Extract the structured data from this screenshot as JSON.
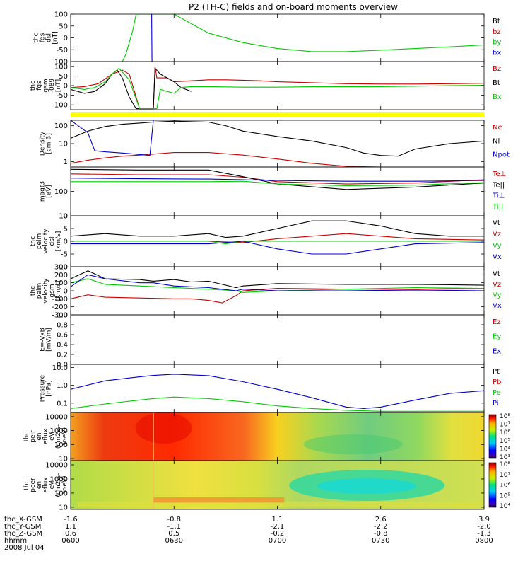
{
  "title": "P2 (TH-C) fields and on-board moments overview",
  "chart_data": {
    "type": "line",
    "time": {
      "start": "0600",
      "end": "0800",
      "date": "2008 Jul 04"
    },
    "panels": [
      {
        "id": "fgs_dsl",
        "ylabel": [
          "thc",
          "fgs",
          "dsl",
          "[nT]"
        ],
        "ylim": [
          -100,
          100
        ],
        "yticks": [
          -100,
          -50,
          0,
          50,
          100
        ],
        "series": [
          {
            "name": "Bt",
            "color": "#000000",
            "t": [],
            "v": []
          },
          {
            "name": "bz",
            "color": "#cc0000",
            "t": [],
            "v": []
          },
          {
            "name": "by",
            "color": "#00cc00",
            "t": [
              0,
              8,
              12,
              15,
              16,
              17,
              18,
              19,
              22,
              24,
              27,
              30,
              35,
              40,
              50,
              60,
              70,
              80,
              90,
              100,
              110,
              120
            ],
            "v": [
              -100,
              -100,
              -100,
              -100,
              -70,
              -20,
              30,
              100,
              100,
              100,
              100,
              100,
              60,
              20,
              -20,
              -45,
              -58,
              -58,
              -52,
              -45,
              -38,
              -30
            ]
          },
          {
            "name": "bx",
            "color": "#0000cc",
            "t": [
              23.5,
              23.6,
              23.7,
              24.0
            ],
            "v": [
              100,
              -100,
              -100,
              -100
            ]
          }
        ]
      },
      {
        "id": "fgs_gsm",
        "ylabel": [
          "thc",
          "fgs",
          "gsm",
          "-089",
          "[nT]"
        ],
        "ylim": [
          -125,
          125
        ],
        "yticks": [
          -100,
          -50,
          0,
          50,
          100
        ],
        "series": [
          {
            "name": "Bz",
            "color": "#cc0000",
            "t": [
              0,
              4,
              8,
              12,
              15,
              17,
              20,
              21,
              24,
              24.5,
              25,
              28,
              30,
              35,
              40,
              45,
              50,
              55,
              60,
              70,
              80,
              90,
              100,
              110,
              120
            ],
            "v": [
              -10,
              -5,
              10,
              60,
              80,
              60,
              -120,
              -120,
              -120,
              100,
              40,
              40,
              20,
              25,
              30,
              30,
              28,
              25,
              20,
              15,
              10,
              8,
              8,
              10,
              12
            ]
          },
          {
            "name": "Bt",
            "color": "#000000",
            "t": [
              0,
              4,
              7,
              10,
              12,
              13.5,
              15,
              17,
              19,
              24,
              24.5,
              26,
              28,
              30,
              32,
              35
            ],
            "v": [
              -20,
              -40,
              -30,
              10,
              60,
              80,
              40,
              -60,
              -120,
              -120,
              90,
              60,
              40,
              20,
              -10,
              -30
            ]
          },
          {
            "name": "Bx",
            "color": "#00cc00",
            "t": [
              0,
              4,
              7,
              10,
              12,
              14,
              17,
              20,
              25,
              26,
              28,
              30,
              32,
              35,
              40,
              50,
              60,
              70,
              80,
              90,
              100,
              110,
              120
            ],
            "v": [
              -10,
              -20,
              -10,
              20,
              60,
              90,
              30,
              -120,
              -120,
              -20,
              -30,
              -40,
              -10,
              -5,
              -5,
              -8,
              -8,
              -6,
              -6,
              -5,
              -3,
              0,
              2
            ]
          }
        ]
      },
      {
        "id": "density",
        "ylabel": [
          "Density",
          "[cm-3]"
        ],
        "scale": "log",
        "ylim": [
          0.5,
          200
        ],
        "yticks": [
          1,
          10,
          100
        ],
        "series": [
          {
            "name": "Ne",
            "color": "#cc0000",
            "t": [
              0,
              5,
              10,
              15,
              20,
              24,
              30,
              40,
              50,
              60,
              70,
              80,
              90,
              100,
              110,
              120
            ],
            "v": [
              0.8,
              1.2,
              1.6,
              2.0,
              2.3,
              2.6,
              3.2,
              3.2,
              2.3,
              1.4,
              0.8,
              0.55,
              0.5,
              0.5,
              0.5,
              0.5
            ]
          },
          {
            "name": "Ni",
            "color": "#000000",
            "t": [
              0,
              5,
              10,
              15,
              20,
              24,
              30,
              40,
              45,
              50,
              60,
              70,
              80,
              85,
              90,
              95,
              100,
              110,
              120
            ],
            "v": [
              20,
              50,
              90,
              120,
              140,
              160,
              180,
              160,
              100,
              50,
              25,
              14,
              6,
              3,
              2.2,
              2.0,
              5,
              10,
              14
            ]
          },
          {
            "name": "Npot",
            "color": "#0000cc",
            "t": [
              0,
              5,
              7,
              10,
              15,
              20,
              23,
              24
            ],
            "v": [
              200,
              40,
              4,
              3.5,
              3.0,
              2.5,
              2.2,
              200
            ]
          }
        ]
      },
      {
        "id": "magt3",
        "ylabel": [
          "magt3",
          "[eV]"
        ],
        "scale": "log",
        "ylim": [
          10,
          1000
        ],
        "yticks": [
          10,
          100
        ],
        "series": [
          {
            "name": "Te⊥",
            "color": "#cc0000",
            "t": [
              0,
              20,
              40,
              50,
              60,
              80,
              100,
              120
            ],
            "v": [
              520,
              480,
              480,
              380,
              250,
              200,
              220,
              300
            ]
          },
          {
            "name": "Te||",
            "color": "#000000",
            "t": [
              0,
              20,
              40,
              50,
              60,
              80,
              100,
              120
            ],
            "v": [
              800,
              750,
              750,
              400,
              200,
              120,
              150,
              220
            ]
          },
          {
            "name": "Ti⊥",
            "color": "#0000cc",
            "t": [
              0,
              20,
              40,
              50,
              60,
              80,
              100,
              120
            ],
            "v": [
              350,
              330,
              320,
              300,
              280,
              260,
              260,
              280
            ]
          },
          {
            "name": "Ti||",
            "color": "#00cc00",
            "t": [
              0,
              20,
              40,
              50,
              60,
              80,
              100,
              120
            ],
            "v": [
              250,
              250,
              250,
              260,
              200,
              170,
              180,
              230
            ]
          }
        ]
      },
      {
        "id": "peim_dsl",
        "ylabel": [
          "thc",
          "peim",
          "velocity",
          "dsl",
          "[km/s]"
        ],
        "ylim": [
          -10,
          10
        ],
        "yticks": [
          -10,
          -5,
          0,
          5,
          10
        ],
        "series": [
          {
            "name": "Vt",
            "color": "#000000",
            "t": [
              0,
              10,
              20,
              30,
              40,
              45,
              50,
              60,
              70,
              80,
              90,
              100,
              110,
              120
            ],
            "v": [
              2,
              3,
              2,
              2,
              3,
              1.5,
              2,
              5,
              8,
              8,
              6,
              3,
              2,
              2
            ]
          },
          {
            "name": "Vz",
            "color": "#cc0000",
            "t": [
              0,
              20,
              40,
              50,
              60,
              70,
              80,
              90,
              100,
              120
            ],
            "v": [
              0,
              0,
              0,
              -0.5,
              1,
              2,
              3,
              2,
              1,
              0.5
            ]
          },
          {
            "name": "Vy",
            "color": "#00cc00",
            "t": [
              0,
              20,
              40,
              45,
              50,
              60,
              70,
              80,
              90,
              100,
              120
            ],
            "v": [
              0,
              0,
              0,
              -1,
              0,
              0,
              0,
              0,
              0,
              0,
              0
            ]
          },
          {
            "name": "Vx",
            "color": "#0000cc",
            "t": [
              0,
              20,
              40,
              50,
              60,
              70,
              80,
              90,
              100,
              120
            ],
            "v": [
              -1,
              -1,
              -1,
              0,
              -3,
              -5,
              -5,
              -3,
              -1,
              -0.5
            ]
          }
        ]
      },
      {
        "id": "peim_gsm",
        "ylabel": [
          "thc",
          "peim",
          "velocity",
          "gsm",
          "[km/s]"
        ],
        "ylim": [
          -300,
          300
        ],
        "yticks": [
          -300,
          -200,
          -100,
          0,
          100,
          200,
          300
        ],
        "series": [
          {
            "name": "Vt",
            "color": "#000000",
            "t": [
              0,
              5,
              10,
              20,
              24,
              30,
              35,
              40,
              44,
              48,
              50,
              60,
              80,
              100,
              120
            ],
            "v": [
              150,
              250,
              150,
              140,
              120,
              140,
              110,
              120,
              80,
              40,
              60,
              90,
              80,
              80,
              70
            ]
          },
          {
            "name": "Vz",
            "color": "#cc0000",
            "t": [
              0,
              5,
              10,
              20,
              30,
              35,
              40,
              44,
              48,
              50,
              60,
              80,
              100,
              120
            ],
            "v": [
              -100,
              -50,
              -80,
              -90,
              -100,
              -100,
              -120,
              -150,
              -60,
              0,
              30,
              20,
              20,
              30
            ]
          },
          {
            "name": "Vy",
            "color": "#00cc00",
            "t": [
              0,
              5,
              10,
              20,
              30,
              40,
              48,
              50,
              60,
              80,
              100,
              120
            ],
            "v": [
              100,
              150,
              80,
              60,
              40,
              20,
              0,
              -20,
              0,
              20,
              40,
              30
            ]
          },
          {
            "name": "Vx",
            "color": "#0000cc",
            "t": [
              0,
              5,
              10,
              20,
              24,
              30,
              40,
              48,
              50,
              60,
              80,
              100,
              120
            ],
            "v": [
              50,
              200,
              150,
              100,
              100,
              60,
              40,
              0,
              20,
              0,
              0,
              10,
              0
            ]
          }
        ]
      },
      {
        "id": "efield",
        "ylabel": [
          "E=-VxB",
          "[mV/m]"
        ],
        "ylim": [
          0,
          1
        ],
        "yticks": [
          0.0,
          0.2,
          0.4,
          0.6,
          0.8,
          1.0
        ],
        "series": [
          {
            "name": "Ez",
            "color": "#cc0000",
            "t": [],
            "v": []
          },
          {
            "name": "Ey",
            "color": "#00cc00",
            "t": [],
            "v": []
          },
          {
            "name": "Ex",
            "color": "#0000cc",
            "t": [],
            "v": []
          }
        ]
      },
      {
        "id": "pressure",
        "ylabel": [
          "Pressure",
          "[nPa]"
        ],
        "scale": "log",
        "ylim": [
          0.03,
          15
        ],
        "yticks": [
          0.1,
          1.0,
          10.0
        ],
        "series": [
          {
            "name": "Pt",
            "color": "#000000",
            "t": [],
            "v": []
          },
          {
            "name": "Pb",
            "color": "#cc0000",
            "t": [],
            "v": []
          },
          {
            "name": "Pe",
            "color": "#00cc00",
            "t": [
              0,
              10,
              20,
              24,
              30,
              40,
              50,
              60,
              70,
              80,
              90,
              100,
              110,
              120
            ],
            "v": [
              0.05,
              0.09,
              0.15,
              0.18,
              0.22,
              0.18,
              0.12,
              0.07,
              0.05,
              0.04,
              0.035,
              0.035,
              0.035,
              0.035
            ]
          },
          {
            "name": "Pi",
            "color": "#0000cc",
            "t": [
              0,
              10,
              20,
              24,
              30,
              40,
              50,
              60,
              70,
              80,
              85,
              90,
              100,
              110,
              120
            ],
            "v": [
              0.6,
              1.8,
              3.0,
              3.6,
              4.2,
              3.5,
              1.6,
              0.6,
              0.2,
              0.06,
              0.05,
              0.06,
              0.15,
              0.35,
              0.5
            ]
          }
        ]
      },
      {
        "id": "peir_spec",
        "type": "heatmap",
        "ylabel": [
          "thc",
          "peir",
          "en",
          "eflux",
          "eV",
          "(cm2-s-",
          "sr-eV)"
        ],
        "yticks": [
          10,
          100,
          1000,
          10000
        ],
        "colorbar_ticks": [
          "10³",
          "10⁴",
          "10⁵",
          "10⁶",
          "10⁷",
          "10⁸"
        ]
      },
      {
        "id": "peer_spec",
        "type": "heatmap",
        "ylabel": [
          "thc",
          "peer",
          "en",
          "eflux",
          "eV",
          "(cm2-s-",
          "sr-eV)"
        ],
        "yticks": [
          10,
          100,
          1000,
          10000
        ],
        "colorbar_ticks": [
          "10⁴",
          "10⁵",
          "10⁶",
          "10⁷",
          "10⁸"
        ]
      }
    ],
    "xaxis": {
      "labels": [
        "thc_X-GSM",
        "thc_Y-GSM",
        "thc_Z-GSM",
        "hhmm"
      ],
      "tick_times": [
        0,
        30,
        60,
        90,
        120
      ],
      "rows": [
        [
          "-1.6",
          "-0.8",
          "1.1",
          "2.6",
          "3.9"
        ],
        [
          "1.1",
          "-1.1",
          "-2.1",
          "-2.2",
          "-2.0"
        ],
        [
          "0.6",
          "0.5",
          "-0.2",
          "-0.8",
          "-1.3"
        ],
        [
          "0600",
          "0630",
          "0700",
          "0730",
          "0800"
        ]
      ]
    }
  }
}
